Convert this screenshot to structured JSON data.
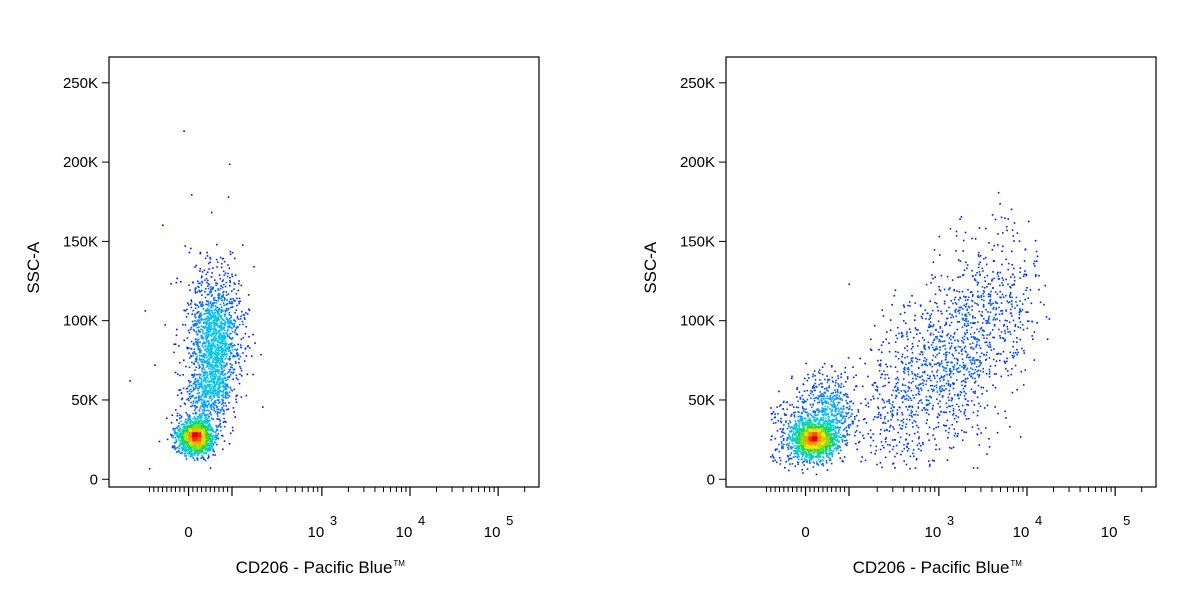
{
  "chart_data": [
    {
      "type": "scatter",
      "panel": "left",
      "xlabel": "CD206 - Pacific Blue",
      "xlabel_tm": "TM",
      "ylabel": "SSC-A",
      "x_scale": "biexponential (linear near 0, log above ~10^2)",
      "ylim": [
        0,
        262144
      ],
      "ytick_labels": [
        "0",
        "50K",
        "100K",
        "150K",
        "200K",
        "250K"
      ],
      "xtick_labels": [
        {
          "base": "0",
          "exp": ""
        },
        {
          "base": "10",
          "exp": "3"
        },
        {
          "base": "10",
          "exp": "4"
        },
        {
          "base": "10",
          "exp": "5"
        }
      ],
      "color_scale": "density (blue → cyan → green → yellow → red)",
      "populations": [
        {
          "name": "dense low-SSC cluster",
          "x_center": 10,
          "y_center": 27000,
          "peak_density": "high (red)"
        },
        {
          "name": "CD206-negative higher-SSC cloud",
          "x_center": 40,
          "y_center": 85000,
          "y_range": [
            40000,
            150000
          ],
          "peak_density": "medium (cyan)"
        }
      ]
    },
    {
      "type": "scatter",
      "panel": "right",
      "xlabel": "CD206 - Pacific Blue",
      "xlabel_tm": "TM",
      "ylabel": "SSC-A",
      "x_scale": "biexponential (linear near 0, log above ~10^2)",
      "ylim": [
        0,
        262144
      ],
      "ytick_labels": [
        "0",
        "50K",
        "100K",
        "150K",
        "200K",
        "250K"
      ],
      "xtick_labels": [
        {
          "base": "0",
          "exp": ""
        },
        {
          "base": "10",
          "exp": "3"
        },
        {
          "base": "10",
          "exp": "4"
        },
        {
          "base": "10",
          "exp": "5"
        }
      ],
      "color_scale": "density (blue → cyan → green → yellow → red)",
      "populations": [
        {
          "name": "dense low-SSC cluster",
          "x_center": 10,
          "y_center": 25000,
          "peak_density": "high (red)"
        },
        {
          "name": "CD206-positive high-SSC population",
          "x_range": [
            300,
            8000
          ],
          "y_range": [
            50000,
            190000
          ],
          "y_center": 110000,
          "peak_density": "low (blue)"
        }
      ]
    }
  ]
}
